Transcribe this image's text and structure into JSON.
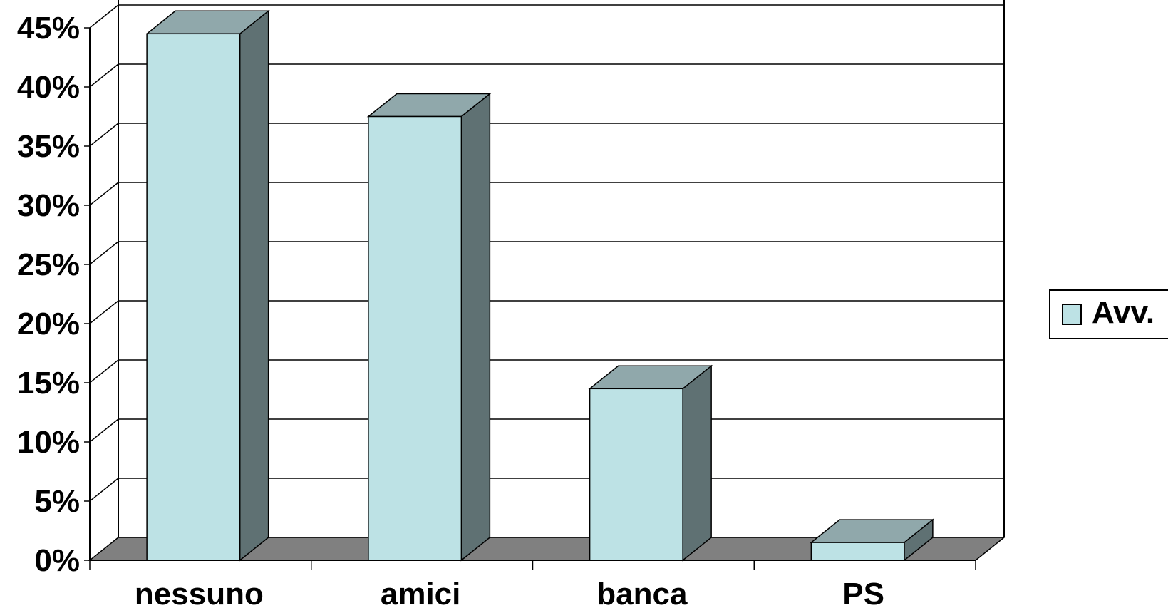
{
  "chart_data": {
    "type": "bar",
    "categories": [
      "nessuno",
      "amici",
      "banca",
      "PS"
    ],
    "series": [
      {
        "name": "Avv.",
        "values": [
          44.5,
          37.5,
          14.5,
          1.5
        ]
      }
    ],
    "y_ticks": [
      "0%",
      "5%",
      "10%",
      "15%",
      "20%",
      "25%",
      "30%",
      "35%",
      "40%",
      "45%"
    ],
    "ylim": [
      0,
      45
    ],
    "y_unit": "%",
    "grid": true,
    "style": "3d",
    "legend": {
      "position": "right",
      "label": "Avv."
    },
    "colors": {
      "bar_front": "#bde2e5",
      "bar_top": "#90a8ab",
      "bar_side": "#5f7173",
      "floor": "#808080",
      "gridline": "#000000"
    }
  }
}
